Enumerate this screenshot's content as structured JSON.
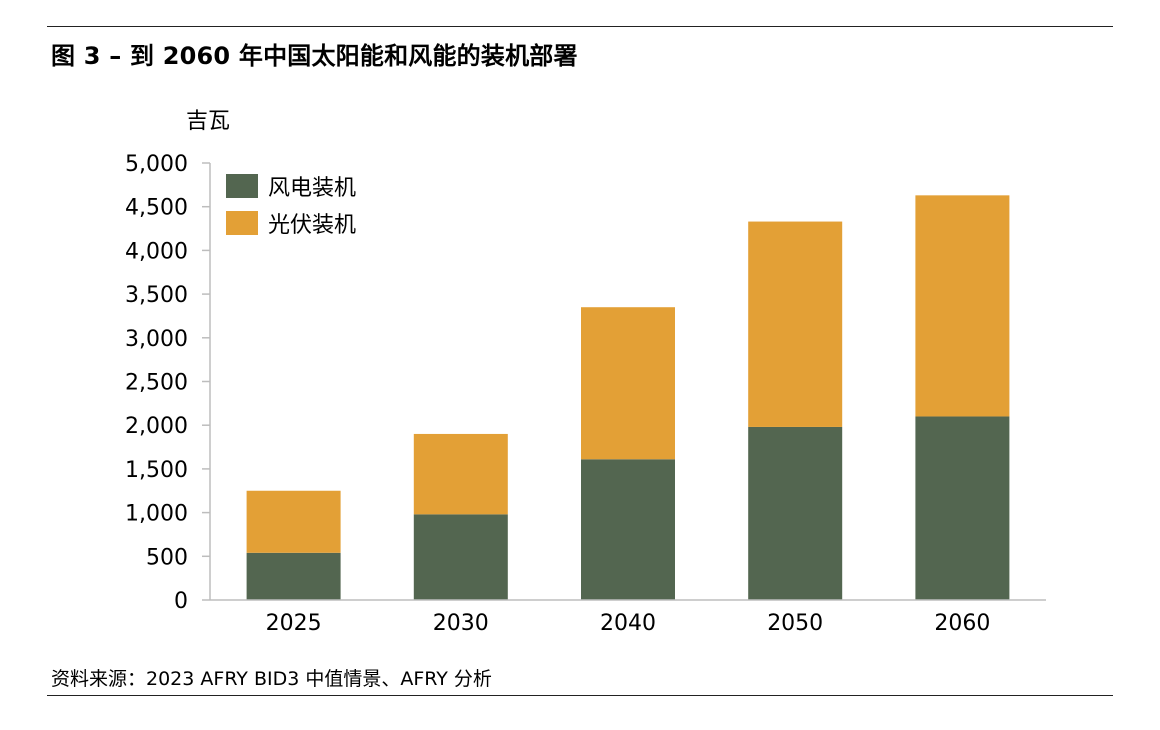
{
  "header": {
    "title": "图 3 – 到 2060 年中国太阳能和风能的装机部署"
  },
  "footer": {
    "source": "资料来源：2023 AFRY BID3 中值情景、AFRY 分析"
  },
  "chart_data": {
    "type": "bar",
    "stacked": true,
    "categories": [
      "2025",
      "2030",
      "2040",
      "2050",
      "2060"
    ],
    "series": [
      {
        "name": "风电装机",
        "color": "#536650",
        "values": [
          540,
          980,
          1610,
          1980,
          2100
        ]
      },
      {
        "name": "光伏装机",
        "color": "#e3a036",
        "values": [
          710,
          920,
          1740,
          2350,
          2530
        ]
      }
    ],
    "ylabel": "吉瓦",
    "ylim": [
      0,
      5000
    ],
    "yticks": [
      0,
      500,
      1000,
      1500,
      2000,
      2500,
      3000,
      3500,
      4000,
      4500,
      5000
    ],
    "ytick_labels": [
      "0",
      "500",
      "1,000",
      "1,500",
      "2,000",
      "2,500",
      "3,000",
      "3,500",
      "4,000",
      "4,500",
      "5,000"
    ],
    "legend_position": "top-left",
    "grid": false
  }
}
